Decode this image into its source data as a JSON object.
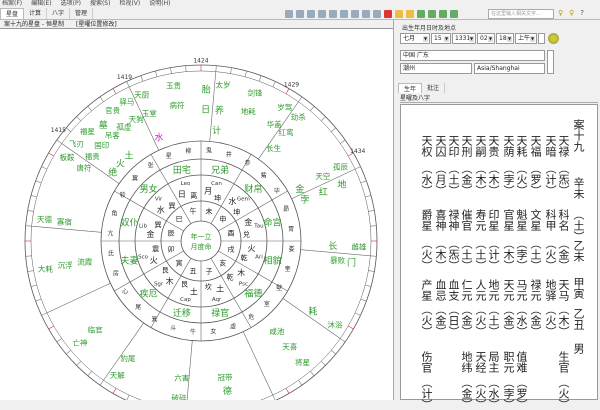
{
  "menu": [
    "档案(F)",
    "编辑(E)",
    "选项(P)",
    "搜索(S)",
    "检视(V)",
    "说明(H)"
  ],
  "tabs": [
    "星盘",
    "计算",
    "八字",
    "管理"
  ],
  "search": {
    "placeholder": "在这里输入相关文字..."
  },
  "chart_header": {
    "title": "案十九的星盘 - 恒星制",
    "option": "[星曜位置修改]"
  },
  "birth": {
    "label": "出生年月日时及地点",
    "month": "七月",
    "day": "15",
    "year": "1331",
    "hour": "02",
    "minute": "18",
    "ampm": "上午",
    "country": "中国 广东",
    "city": "潮州",
    "timezone": "Asia/Shanghai"
  },
  "right_tabs": [
    "生年",
    "批注"
  ],
  "right_sub": "星曜及八字",
  "bazi_right": [
    "案十九",
    "辛未",
    "（土）",
    "乙未",
    "甲寅",
    "乙丑",
    "男"
  ],
  "star_rows": [
    [
      {
        "n": "天权",
        "e": "水"
      },
      {
        "n": "天囚",
        "e": "月"
      },
      {
        "n": "天印",
        "e": "土"
      },
      {
        "n": "天刑",
        "e": "金"
      },
      {
        "n": "天嗣",
        "e": "木"
      },
      {
        "n": "天贵",
        "e": "木"
      },
      {
        "n": "天荫",
        "e": "孛"
      },
      {
        "n": "天耗",
        "e": "火"
      },
      {
        "n": "天福",
        "e": "罗"
      },
      {
        "n": "天暗",
        "e": "计"
      },
      {
        "n": "天禄",
        "e": "炁"
      }
    ],
    [
      {
        "n": "爵星",
        "e": "火"
      },
      {
        "n": "喜神",
        "e": "木"
      },
      {
        "n": "禄神",
        "e": "炁"
      },
      {
        "n": "催官",
        "e": "土"
      },
      {
        "n": "寿元",
        "e": "土"
      },
      {
        "n": "印星",
        "e": "计"
      },
      {
        "n": "官星",
        "e": "木"
      },
      {
        "n": "魁星",
        "e": "孛"
      },
      {
        "n": "文星",
        "e": "土"
      },
      {
        "n": "科甲",
        "e": "火"
      },
      {
        "n": "科名",
        "e": "金"
      }
    ],
    [
      {
        "n": "产星",
        "e": "火"
      },
      {
        "n": "血忌",
        "e": "金"
      },
      {
        "n": "血支",
        "e": "日"
      },
      {
        "n": "仁元",
        "e": "金"
      },
      {
        "n": "人元",
        "e": "火"
      },
      {
        "n": "地元",
        "e": "土"
      },
      {
        "n": "天元",
        "e": "金"
      },
      {
        "n": "马元",
        "e": "水"
      },
      {
        "n": "禄元",
        "e": "金"
      },
      {
        "n": "地驿",
        "e": "火"
      },
      {
        "n": "天马",
        "e": "木"
      }
    ],
    [
      {
        "n": "伤官",
        "e": "计"
      },
      {
        "n": "",
        "e": ""
      },
      {
        "n": "",
        "e": ""
      },
      {
        "n": "地纬",
        "e": "金"
      },
      {
        "n": "天经",
        "e": "火"
      },
      {
        "n": "局主",
        "e": "水"
      },
      {
        "n": "职元",
        "e": "孛"
      },
      {
        "n": "值难",
        "e": "罗"
      },
      {
        "n": "",
        "e": ""
      },
      {
        "n": "",
        "e": ""
      },
      {
        "n": "生官",
        "e": "火"
      }
    ]
  ],
  "chart": {
    "center": [
      "年一立",
      "月度命"
    ],
    "degree_labels": [
      "1424",
      "1429",
      "1434",
      "1419",
      "1415"
    ],
    "zodiac": [
      "Can",
      "Gem",
      "Tau",
      "Ari",
      "Psc",
      "Aqr",
      "Cap",
      "Sgr",
      "Sco",
      "Lib",
      "Vir",
      "Leo"
    ],
    "branches": [
      "未",
      "申",
      "酉",
      "戌",
      "亥",
      "子",
      "丑",
      "寅",
      "卯",
      "辰",
      "巳",
      "午"
    ],
    "trigrams": [
      "坤",
      "坤",
      "兑",
      "乾",
      "乾",
      "坎",
      "艮",
      "艮",
      "震",
      "巽",
      "巽",
      "离"
    ],
    "planets": [
      "月",
      "水",
      "金",
      "火",
      "木",
      "土",
      "土",
      "木",
      "火",
      "金",
      "水",
      "日"
    ],
    "palaces": [
      "兄弟",
      "财帛",
      "命宫",
      "相貌",
      "福德",
      "禄官",
      "迁移",
      "疾厄",
      "夫妻",
      "奴仆",
      "男女",
      "田宅"
    ],
    "mansions": [
      "鬼",
      "井",
      "参",
      "觜",
      "毕",
      "昴",
      "胃",
      "娄",
      "奎",
      "壁",
      "室",
      "危",
      "虚",
      "女",
      "牛",
      "斗",
      "箕",
      "尾",
      "心",
      "房",
      "氐",
      "亢",
      "角",
      "轸",
      "翼",
      "张",
      "星",
      "柳"
    ],
    "outer_stars": [
      [
        "太岁",
        "剑锋",
        "岁驾",
        "养",
        "地耗",
        "华盖",
        "计"
      ],
      [
        "劫杀",
        "孤辰",
        "红鸾",
        "天空",
        "长生",
        "金"
      ],
      [
        "地",
        "雌雄",
        "红",
        "长",
        "孛"
      ],
      [
        "门",
        "沐浴",
        "暴败",
        "耗"
      ],
      [
        "将星",
        "天喜",
        "咸池"
      ],
      [
        "德",
        "冠带"
      ],
      [
        "破碎",
        "天解",
        "六害",
        "豹尾"
      ],
      [
        "亡神",
        "临官"
      ],
      [
        "大耗",
        "沉浮",
        "流霞"
      ],
      [
        "天德",
        "板鞍",
        "寡宿",
        "唐符"
      ],
      [
        "飞刃",
        "福星",
        "墓",
        "官贵",
        "驿马",
        "福贵",
        "国印",
        "吊客",
        "孤虚",
        "天狗",
        "绝",
        "火",
        "土"
      ],
      [
        "天厨",
        "玉贵",
        "胎",
        "玉堂",
        "病符",
        "日",
        "水"
      ]
    ],
    "colors": {
      "palace": "#2e9a2e",
      "stars": "#2e9a2e",
      "inner": "#222222",
      "highlight": "#d020c0",
      "tick": "#d03030"
    }
  }
}
